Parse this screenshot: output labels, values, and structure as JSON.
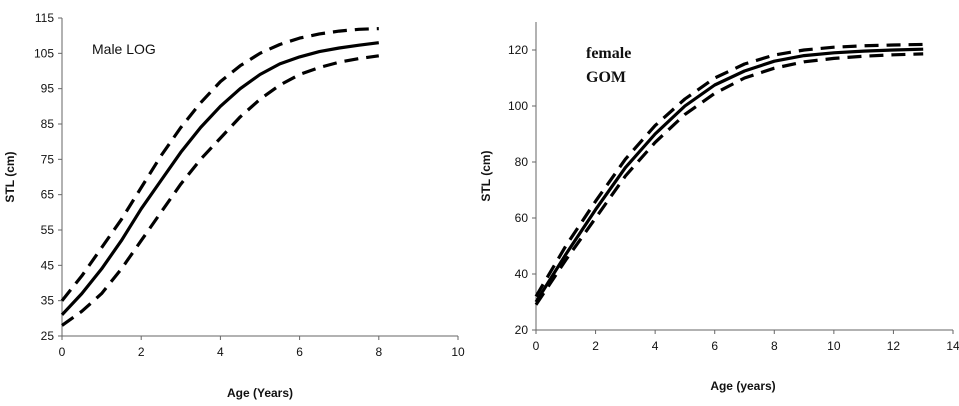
{
  "chart_data": [
    {
      "type": "line",
      "annotation": "Male LOG",
      "xlabel": "Age (Years)",
      "ylabel": "STL (cm)",
      "xlim": [
        0,
        10
      ],
      "ylim": [
        25,
        115
      ],
      "xticks": [
        "0",
        "2",
        "4",
        "6",
        "8",
        "10"
      ],
      "yticks": [
        "25",
        "35",
        "45",
        "55",
        "65",
        "75",
        "85",
        "95",
        "105",
        "115"
      ],
      "grid": false,
      "series": [
        {
          "style": "solid",
          "x": [
            0,
            0.5,
            1,
            1.5,
            2,
            2.5,
            3,
            3.5,
            4,
            4.5,
            5,
            5.5,
            6,
            6.5,
            7,
            7.5,
            8
          ],
          "y": [
            31,
            37,
            44,
            52,
            61,
            69,
            77,
            84,
            90,
            95,
            99,
            102,
            104,
            105.5,
            106.5,
            107.3,
            108
          ]
        },
        {
          "style": "dashed",
          "x": [
            0,
            0.5,
            1,
            1.5,
            2,
            2.5,
            3,
            3.5,
            4,
            4.5,
            5,
            5.5,
            6,
            6.5,
            7,
            7.5,
            8
          ],
          "y": [
            35,
            42,
            50,
            58,
            67,
            76,
            84,
            91,
            97,
            101.5,
            105,
            107.5,
            109.3,
            110.5,
            111.3,
            111.8,
            112
          ]
        },
        {
          "style": "dashed",
          "x": [
            0,
            0.5,
            1,
            1.5,
            2,
            2.5,
            3,
            3.5,
            4,
            4.5,
            5,
            5.5,
            6,
            6.5,
            7,
            7.5,
            8
          ],
          "y": [
            28,
            32,
            37,
            44,
            52,
            60,
            68,
            75,
            81,
            87,
            92,
            96,
            99,
            101,
            102.5,
            103.5,
            104.3
          ]
        }
      ]
    },
    {
      "type": "line",
      "annotation": [
        "female",
        "GOM"
      ],
      "xlabel": "Age (years)",
      "ylabel": "STL (cm)",
      "xlim": [
        0,
        14
      ],
      "ylim": [
        20,
        130
      ],
      "xticks": [
        "0",
        "2",
        "4",
        "6",
        "8",
        "10",
        "12",
        "14"
      ],
      "yticks": [
        "20",
        "40",
        "60",
        "80",
        "100",
        "120"
      ],
      "grid": false,
      "series": [
        {
          "style": "solid",
          "x": [
            0,
            1,
            2,
            3,
            4,
            5,
            6,
            7,
            8,
            9,
            10,
            11,
            12,
            13
          ],
          "y": [
            30,
            47,
            63,
            78,
            90,
            100,
            107.5,
            112.5,
            116,
            118,
            119,
            119.6,
            120,
            120.3
          ]
        },
        {
          "style": "dashed",
          "x": [
            0,
            1,
            2,
            3,
            4,
            5,
            6,
            7,
            8,
            9,
            10,
            11,
            12,
            13
          ],
          "y": [
            32,
            50,
            66,
            81,
            93,
            102.5,
            110,
            115,
            118.2,
            120,
            121,
            121.5,
            121.8,
            122
          ]
        },
        {
          "style": "dashed",
          "x": [
            0,
            1,
            2,
            3,
            4,
            5,
            6,
            7,
            8,
            9,
            10,
            11,
            12,
            13
          ],
          "y": [
            29,
            45,
            60,
            75,
            87,
            97,
            104.5,
            110,
            113.5,
            115.8,
            117,
            117.8,
            118.3,
            118.6
          ]
        }
      ]
    }
  ]
}
